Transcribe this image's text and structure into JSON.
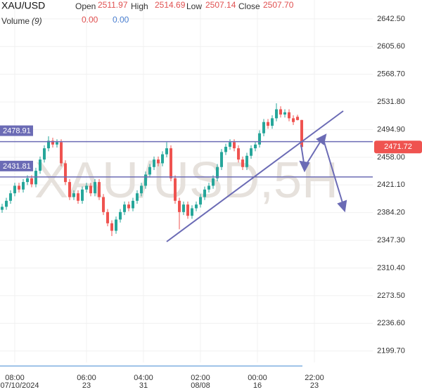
{
  "header": {
    "symbol": "XAU/USD",
    "open_label": "Open",
    "open": "2511.97",
    "high_label": "High",
    "high": "2514.69",
    "low_label": "Low",
    "low": "2507.14",
    "close_label": "Close",
    "close": "2507.70",
    "volume_label": "Volume",
    "volume_period": "(9)",
    "volume_a": "0.00",
    "volume_b": "0.00"
  },
  "chart_data": {
    "type": "candlestick",
    "watermark": "XAU/USD,5H",
    "up_color": "#26a69a",
    "down_color": "#ef5350",
    "level_color": "#6b6bb5",
    "xlim": [
      -0.5,
      87.83
    ],
    "ylim": [
      2184.4,
      2667.7
    ],
    "yticks": [
      {
        "value": 2642.5,
        "label": "2642.50"
      },
      {
        "value": 2605.6,
        "label": "2605.60"
      },
      {
        "value": 2568.7,
        "label": "2568.70"
      },
      {
        "value": 2531.8,
        "label": "2531.80"
      },
      {
        "value": 2494.9,
        "label": "2494.90"
      },
      {
        "value": 2458,
        "label": "2458.00"
      },
      {
        "value": 2421.1,
        "label": "2421.10"
      },
      {
        "value": 2384.2,
        "label": "2384.20"
      },
      {
        "value": 2347.3,
        "label": "2347.30"
      },
      {
        "value": 2310.4,
        "label": "2310.40"
      },
      {
        "value": 2273.5,
        "label": "2273.50"
      },
      {
        "value": 2236.6,
        "label": "2236.60"
      },
      {
        "value": 2199.7,
        "label": "2199.70"
      }
    ],
    "xticks": [
      {
        "value": 3,
        "label": "08:00",
        "date": "07/10/2024"
      },
      {
        "value": 20,
        "label": "06:00",
        "date": "23"
      },
      {
        "value": 33.5,
        "label": "04:00",
        "date": "31"
      },
      {
        "value": 47,
        "label": "02:00",
        "date": "08/08"
      },
      {
        "value": 60.5,
        "label": "00:00",
        "date": "16"
      },
      {
        "value": 74,
        "label": "22:00",
        "date": "23"
      }
    ],
    "levels": [
      2478.91,
      2431.81
    ],
    "candles": [
      [
        2388,
        2396,
        2384,
        2392
      ],
      [
        2392,
        2404,
        2388,
        2400
      ],
      [
        2400,
        2414,
        2396,
        2410
      ],
      [
        2410,
        2424,
        2406,
        2420
      ],
      [
        2420,
        2424,
        2411,
        2415
      ],
      [
        2415,
        2429,
        2411,
        2425
      ],
      [
        2425,
        2434,
        2421,
        2430
      ],
      [
        2430,
        2434,
        2418,
        2422
      ],
      [
        2422,
        2444,
        2418,
        2440
      ],
      [
        2440,
        2459,
        2436,
        2455
      ],
      [
        2455,
        2474,
        2451,
        2470
      ],
      [
        2470,
        2486,
        2466,
        2480
      ],
      [
        2480,
        2484,
        2471,
        2475
      ],
      [
        2475,
        2482,
        2471,
        2478
      ],
      [
        2478,
        2482,
        2446,
        2450
      ],
      [
        2450,
        2454,
        2421,
        2425
      ],
      [
        2425,
        2429,
        2401,
        2405
      ],
      [
        2405,
        2414,
        2401,
        2410
      ],
      [
        2410,
        2414,
        2396,
        2400
      ],
      [
        2400,
        2419,
        2396,
        2415
      ],
      [
        2415,
        2424,
        2411,
        2420
      ],
      [
        2420,
        2424,
        2406,
        2410
      ],
      [
        2410,
        2429,
        2406,
        2425
      ],
      [
        2425,
        2429,
        2401,
        2405
      ],
      [
        2405,
        2409,
        2381,
        2385
      ],
      [
        2385,
        2389,
        2366,
        2370
      ],
      [
        2370,
        2374,
        2353,
        2360
      ],
      [
        2360,
        2379,
        2356,
        2375
      ],
      [
        2375,
        2389,
        2371,
        2385
      ],
      [
        2385,
        2399,
        2381,
        2395
      ],
      [
        2395,
        2399,
        2386,
        2390
      ],
      [
        2390,
        2404,
        2386,
        2400
      ],
      [
        2400,
        2414,
        2396,
        2410
      ],
      [
        2410,
        2424,
        2406,
        2420
      ],
      [
        2420,
        2439,
        2416,
        2435
      ],
      [
        2435,
        2449,
        2431,
        2445
      ],
      [
        2445,
        2459,
        2441,
        2455
      ],
      [
        2455,
        2459,
        2446,
        2450
      ],
      [
        2450,
        2466,
        2446,
        2462
      ],
      [
        2462,
        2478,
        2458,
        2470
      ],
      [
        2470,
        2474,
        2426,
        2430
      ],
      [
        2430,
        2434,
        2396,
        2400
      ],
      [
        2400,
        2404,
        2362,
        2385
      ],
      [
        2385,
        2399,
        2381,
        2395
      ],
      [
        2395,
        2399,
        2376,
        2380
      ],
      [
        2380,
        2394,
        2376,
        2390
      ],
      [
        2390,
        2399,
        2386,
        2395
      ],
      [
        2395,
        2409,
        2391,
        2405
      ],
      [
        2405,
        2419,
        2401,
        2415
      ],
      [
        2415,
        2424,
        2411,
        2420
      ],
      [
        2420,
        2434,
        2416,
        2430
      ],
      [
        2430,
        2449,
        2426,
        2445
      ],
      [
        2445,
        2469,
        2441,
        2465
      ],
      [
        2465,
        2476,
        2461,
        2472
      ],
      [
        2472,
        2482,
        2468,
        2478
      ],
      [
        2478,
        2482,
        2466,
        2470
      ],
      [
        2470,
        2474,
        2451,
        2455
      ],
      [
        2455,
        2459,
        2441,
        2445
      ],
      [
        2445,
        2464,
        2441,
        2460
      ],
      [
        2460,
        2474,
        2456,
        2470
      ],
      [
        2470,
        2479,
        2466,
        2475
      ],
      [
        2475,
        2494,
        2471,
        2490
      ],
      [
        2490,
        2509,
        2486,
        2505
      ],
      [
        2505,
        2509,
        2496,
        2500
      ],
      [
        2500,
        2514,
        2496,
        2510
      ],
      [
        2510,
        2530,
        2506,
        2522
      ],
      [
        2522,
        2526,
        2511,
        2515
      ],
      [
        2515,
        2522,
        2511,
        2518
      ],
      [
        2518,
        2522,
        2506,
        2510
      ],
      [
        2510,
        2514,
        2501,
        2505
      ],
      [
        2511.97,
        2514.69,
        2507.14,
        2507.7
      ],
      [
        2507.7,
        2508,
        2468,
        2471.72
      ]
    ]
  }
}
